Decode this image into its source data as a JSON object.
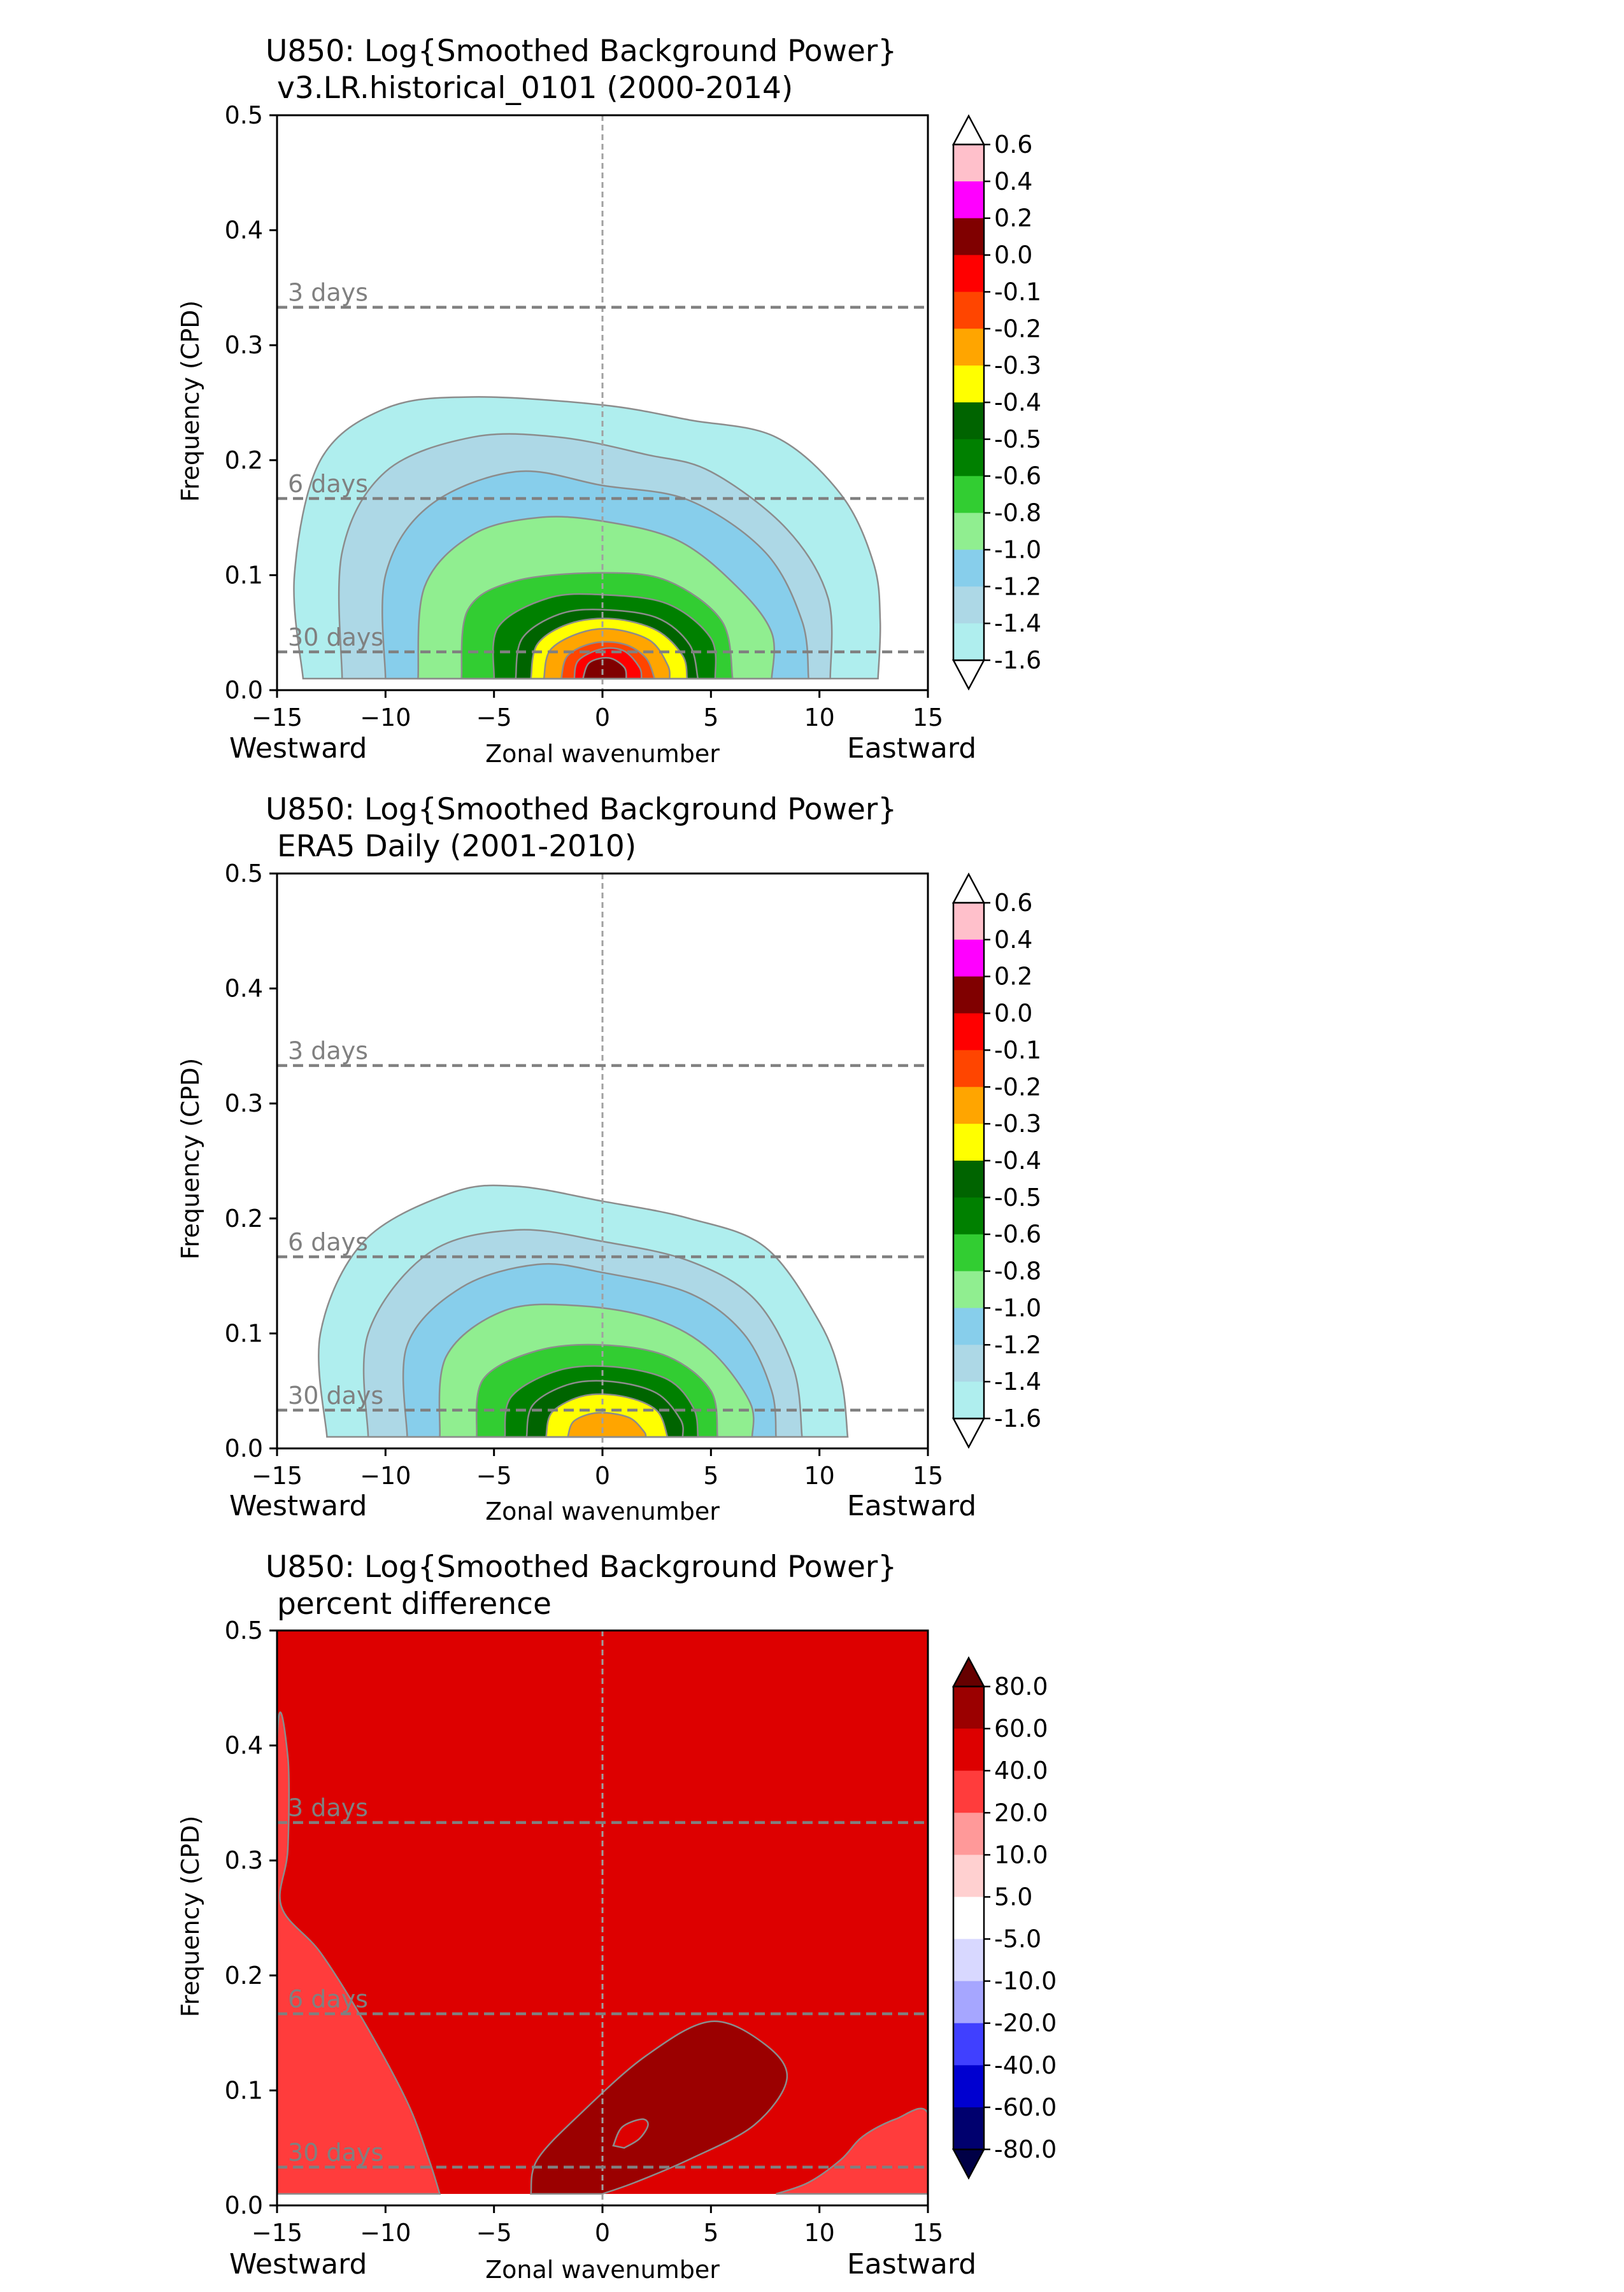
{
  "chart_data": [
    {
      "type": "contour",
      "title_line1": "U850: Log{Smoothed Background Power}",
      "title_line2": "v3.LR.historical_0101 (2000-2014)",
      "xlabel": "Zonal wavenumber",
      "ylabel": "Frequency (CPD)",
      "xlim": [
        -15,
        15
      ],
      "ylim": [
        0,
        0.5
      ],
      "x_ticks": [
        -15,
        -10,
        -5,
        0,
        5,
        10,
        15
      ],
      "y_ticks": [
        0.0,
        0.1,
        0.2,
        0.3,
        0.4,
        0.5
      ],
      "direction_left": "Westward",
      "direction_right": "Eastward",
      "period_lines": [
        {
          "label": "3 days",
          "freq": 0.333
        },
        {
          "label": "6 days",
          "freq": 0.1667
        },
        {
          "label": "30 days",
          "freq": 0.0333
        }
      ],
      "colorbar_labels": [
        "0.6",
        "0.4",
        "0.2",
        "0.0",
        "-0.1",
        "-0.2",
        "-0.3",
        "-0.4",
        "-0.5",
        "-0.6",
        "-0.8",
        "-1.0",
        "-1.2",
        "-1.4",
        "-1.6"
      ],
      "colorbar_colors": [
        "#ffc0cb",
        "#ff00ff",
        "#800000",
        "#ff0000",
        "#ff4500",
        "#ffa500",
        "#ffff00",
        "#006400",
        "#008000",
        "#32cd32",
        "#90ee90",
        "#87ceeb",
        "#add8e6",
        "#afeeee"
      ],
      "colorbar_extend_max_color": "#ffffff",
      "colorbar_extend_min_color": "#ffffff",
      "contours": [
        {
          "color": "#afeeee",
          "points": [
            [
              -13.8,
              0.01
            ],
            [
              -14.2,
              0.1
            ],
            [
              -13,
              0.2
            ],
            [
              -10,
              0.245
            ],
            [
              -6,
              0.255
            ],
            [
              0,
              0.248
            ],
            [
              4,
              0.235
            ],
            [
              8,
              0.22
            ],
            [
              11,
              0.17
            ],
            [
              12.5,
              0.11
            ],
            [
              12.8,
              0.06
            ],
            [
              12.7,
              0.01
            ]
          ]
        },
        {
          "color": "#add8e6",
          "points": [
            [
              -12,
              0.01
            ],
            [
              -12,
              0.12
            ],
            [
              -10,
              0.19
            ],
            [
              -6,
              0.22
            ],
            [
              -2,
              0.22
            ],
            [
              2,
              0.205
            ],
            [
              5,
              0.19
            ],
            [
              8.5,
              0.14
            ],
            [
              10.4,
              0.08
            ],
            [
              10.5,
              0.01
            ]
          ]
        },
        {
          "color": "#87ceeb",
          "points": [
            [
              -10,
              0.01
            ],
            [
              -10,
              0.1
            ],
            [
              -8,
              0.16
            ],
            [
              -4,
              0.19
            ],
            [
              0,
              0.178
            ],
            [
              4,
              0.165
            ],
            [
              7.5,
              0.12
            ],
            [
              9.2,
              0.06
            ],
            [
              9.5,
              0.01
            ]
          ]
        },
        {
          "color": "#90ee90",
          "points": [
            [
              -8.5,
              0.01
            ],
            [
              -8.2,
              0.09
            ],
            [
              -6,
              0.135
            ],
            [
              -3,
              0.15
            ],
            [
              0,
              0.147
            ],
            [
              3.5,
              0.13
            ],
            [
              6.2,
              0.09
            ],
            [
              7.8,
              0.05
            ],
            [
              7.8,
              0.01
            ]
          ]
        },
        {
          "color": "#32cd32",
          "points": [
            [
              -6.5,
              0.01
            ],
            [
              -6.2,
              0.07
            ],
            [
              -4,
              0.095
            ],
            [
              0,
              0.102
            ],
            [
              3,
              0.095
            ],
            [
              5.5,
              0.06
            ],
            [
              6,
              0.01
            ]
          ]
        },
        {
          "color": "#008000",
          "points": [
            [
              -5,
              0.01
            ],
            [
              -4.8,
              0.055
            ],
            [
              -2.5,
              0.08
            ],
            [
              0,
              0.083
            ],
            [
              3,
              0.075
            ],
            [
              5,
              0.045
            ],
            [
              5.2,
              0.01
            ]
          ]
        },
        {
          "color": "#006400",
          "points": [
            [
              -4,
              0.01
            ],
            [
              -3.7,
              0.045
            ],
            [
              -2,
              0.066
            ],
            [
              0,
              0.07
            ],
            [
              2.5,
              0.063
            ],
            [
              4,
              0.04
            ],
            [
              4.4,
              0.01
            ]
          ]
        },
        {
          "color": "#ffff00",
          "points": [
            [
              -3.3,
              0.01
            ],
            [
              -3,
              0.04
            ],
            [
              -1.5,
              0.058
            ],
            [
              0.5,
              0.062
            ],
            [
              2.5,
              0.052
            ],
            [
              3.7,
              0.03
            ],
            [
              3.9,
              0.01
            ]
          ]
        },
        {
          "color": "#ffa500",
          "points": [
            [
              -2.7,
              0.01
            ],
            [
              -2.4,
              0.035
            ],
            [
              -1,
              0.05
            ],
            [
              0.5,
              0.053
            ],
            [
              2.2,
              0.043
            ],
            [
              3,
              0.022
            ],
            [
              3.1,
              0.01
            ]
          ]
        },
        {
          "color": "#ff4500",
          "points": [
            [
              -1.9,
              0.01
            ],
            [
              -1.6,
              0.03
            ],
            [
              -0.4,
              0.041
            ],
            [
              1,
              0.04
            ],
            [
              2,
              0.028
            ],
            [
              2.4,
              0.01
            ]
          ]
        },
        {
          "color": "#ff0000",
          "points": [
            [
              -1.3,
              0.01
            ],
            [
              -1.1,
              0.026
            ],
            [
              0,
              0.036
            ],
            [
              1,
              0.034
            ],
            [
              1.7,
              0.02
            ],
            [
              1.8,
              0.01
            ]
          ]
        },
        {
          "color": "#800000",
          "points": [
            [
              -0.9,
              0.01
            ],
            [
              -0.6,
              0.024
            ],
            [
              0.3,
              0.028
            ],
            [
              1,
              0.02
            ],
            [
              1.1,
              0.01
            ]
          ]
        }
      ]
    },
    {
      "type": "contour",
      "title_line1": "U850: Log{Smoothed Background Power}",
      "title_line2": "ERA5 Daily (2001-2010)",
      "xlabel": "Zonal wavenumber",
      "ylabel": "Frequency (CPD)",
      "xlim": [
        -15,
        15
      ],
      "ylim": [
        0,
        0.5
      ],
      "x_ticks": [
        -15,
        -10,
        -5,
        0,
        5,
        10,
        15
      ],
      "y_ticks": [
        0.0,
        0.1,
        0.2,
        0.3,
        0.4,
        0.5
      ],
      "direction_left": "Westward",
      "direction_right": "Eastward",
      "period_lines": [
        {
          "label": "3 days",
          "freq": 0.333
        },
        {
          "label": "6 days",
          "freq": 0.1667
        },
        {
          "label": "30 days",
          "freq": 0.0333
        }
      ],
      "colorbar_labels": [
        "0.6",
        "0.4",
        "0.2",
        "0.0",
        "-0.1",
        "-0.2",
        "-0.3",
        "-0.4",
        "-0.5",
        "-0.6",
        "-0.8",
        "-1.0",
        "-1.2",
        "-1.4",
        "-1.6"
      ],
      "colorbar_colors": [
        "#ffc0cb",
        "#ff00ff",
        "#800000",
        "#ff0000",
        "#ff4500",
        "#ffa500",
        "#ffff00",
        "#006400",
        "#008000",
        "#32cd32",
        "#90ee90",
        "#87ceeb",
        "#add8e6",
        "#afeeee"
      ],
      "colorbar_extend_max_color": "#ffffff",
      "colorbar_extend_min_color": "#ffffff",
      "contours": [
        {
          "color": "#afeeee",
          "points": [
            [
              -12.7,
              0.01
            ],
            [
              -13,
              0.1
            ],
            [
              -11,
              0.18
            ],
            [
              -7,
              0.222
            ],
            [
              -4,
              0.228
            ],
            [
              0,
              0.215
            ],
            [
              4,
              0.2
            ],
            [
              7.5,
              0.175
            ],
            [
              10,
              0.11
            ],
            [
              11,
              0.06
            ],
            [
              11.3,
              0.01
            ]
          ]
        },
        {
          "color": "#add8e6",
          "points": [
            [
              -10.8,
              0.01
            ],
            [
              -10.8,
              0.1
            ],
            [
              -8,
              0.17
            ],
            [
              -4,
              0.19
            ],
            [
              0,
              0.18
            ],
            [
              4,
              0.163
            ],
            [
              7,
              0.13
            ],
            [
              8.8,
              0.07
            ],
            [
              9.2,
              0.01
            ]
          ]
        },
        {
          "color": "#87ceeb",
          "points": [
            [
              -9,
              0.01
            ],
            [
              -9,
              0.09
            ],
            [
              -6.5,
              0.14
            ],
            [
              -3,
              0.16
            ],
            [
              0,
              0.153
            ],
            [
              4,
              0.135
            ],
            [
              6.5,
              0.1
            ],
            [
              7.8,
              0.05
            ],
            [
              8,
              0.01
            ]
          ]
        },
        {
          "color": "#90ee90",
          "points": [
            [
              -7.5,
              0.01
            ],
            [
              -7.2,
              0.08
            ],
            [
              -4.5,
              0.12
            ],
            [
              -1,
              0.124
            ],
            [
              2.5,
              0.112
            ],
            [
              5,
              0.085
            ],
            [
              6.8,
              0.04
            ],
            [
              6.9,
              0.01
            ]
          ]
        },
        {
          "color": "#32cd32",
          "points": [
            [
              -5.8,
              0.01
            ],
            [
              -5.5,
              0.06
            ],
            [
              -3,
              0.085
            ],
            [
              0,
              0.09
            ],
            [
              3,
              0.08
            ],
            [
              5,
              0.05
            ],
            [
              5.3,
              0.01
            ]
          ]
        },
        {
          "color": "#008000",
          "points": [
            [
              -4.5,
              0.01
            ],
            [
              -4.2,
              0.045
            ],
            [
              -2,
              0.068
            ],
            [
              0.5,
              0.071
            ],
            [
              3,
              0.06
            ],
            [
              4.2,
              0.035
            ],
            [
              4.4,
              0.01
            ]
          ]
        },
        {
          "color": "#006400",
          "points": [
            [
              -3.5,
              0.01
            ],
            [
              -3.2,
              0.038
            ],
            [
              -1.5,
              0.056
            ],
            [
              0.5,
              0.058
            ],
            [
              2.5,
              0.048
            ],
            [
              3.6,
              0.025
            ],
            [
              3.7,
              0.01
            ]
          ]
        },
        {
          "color": "#ffff00",
          "points": [
            [
              -2.6,
              0.01
            ],
            [
              -2.3,
              0.032
            ],
            [
              -0.8,
              0.046
            ],
            [
              1,
              0.045
            ],
            [
              2.5,
              0.033
            ],
            [
              3,
              0.01
            ]
          ]
        },
        {
          "color": "#ffa500",
          "points": [
            [
              -1.6,
              0.01
            ],
            [
              -1.3,
              0.024
            ],
            [
              -0.2,
              0.031
            ],
            [
              1.2,
              0.027
            ],
            [
              1.9,
              0.015
            ],
            [
              2,
              0.01
            ]
          ]
        }
      ]
    },
    {
      "type": "contour",
      "title_line1": "U850: Log{Smoothed Background Power}",
      "title_line2": "percent difference",
      "xlabel": "Zonal wavenumber",
      "ylabel": "Frequency (CPD)",
      "xlim": [
        -15,
        15
      ],
      "ylim": [
        0,
        0.5
      ],
      "x_ticks": [
        -15,
        -10,
        -5,
        0,
        5,
        10,
        15
      ],
      "y_ticks": [
        0.0,
        0.1,
        0.2,
        0.3,
        0.4,
        0.5
      ],
      "direction_left": "Westward",
      "direction_right": "Eastward",
      "period_lines": [
        {
          "label": "3 days",
          "freq": 0.333
        },
        {
          "label": "6 days",
          "freq": 0.1667
        },
        {
          "label": "30 days",
          "freq": 0.0333
        }
      ],
      "colorbar_labels": [
        "80.0",
        "60.0",
        "40.0",
        "20.0",
        "10.0",
        "5.0",
        "-5.0",
        "-10.0",
        "-20.0",
        "-40.0",
        "-60.0",
        "-80.0"
      ],
      "colorbar_colors": [
        "#9b0000",
        "#dd0000",
        "#ff3c3c",
        "#ff9999",
        "#ffd0d0",
        "#ffffff",
        "#d8d8ff",
        "#a6a6ff",
        "#4040ff",
        "#0000d0",
        "#00006e"
      ],
      "colorbar_extend_max_color": "#660000",
      "colorbar_extend_min_color": "#000046",
      "background_color": "#dd0000",
      "contours": [
        {
          "color": "#ff3c3c",
          "points": [
            [
              -15,
              0.01
            ],
            [
              -15,
              0.4
            ],
            [
              -14.5,
              0.39
            ],
            [
              -14.5,
              0.31
            ],
            [
              -14.8,
              0.26
            ],
            [
              -13,
              0.22
            ],
            [
              -11,
              0.16
            ],
            [
              -9,
              0.09
            ],
            [
              -8,
              0.04
            ],
            [
              -7.5,
              0.01
            ]
          ]
        },
        {
          "color": "#ff3c3c",
          "points": [
            [
              15,
              0.01
            ],
            [
              15,
              0.08
            ],
            [
              13.5,
              0.075
            ],
            [
              12,
              0.06
            ],
            [
              11,
              0.04
            ],
            [
              9.5,
              0.02
            ],
            [
              8,
              0.01
            ]
          ]
        },
        {
          "color": "#9b0000",
          "points": [
            [
              -3.3,
              0.01
            ],
            [
              -3,
              0.04
            ],
            [
              -1,
              0.08
            ],
            [
              2,
              0.13
            ],
            [
              5,
              0.16
            ],
            [
              7.5,
              0.14
            ],
            [
              8.5,
              0.11
            ],
            [
              7,
              0.07
            ],
            [
              4,
              0.04
            ],
            [
              1.5,
              0.02
            ],
            [
              0,
              0.01
            ]
          ]
        },
        {
          "color": "#dd0000",
          "points": [
            [
              0.5,
              0.052
            ],
            [
              0.9,
              0.068
            ],
            [
              1.8,
              0.075
            ],
            [
              2.1,
              0.07
            ],
            [
              1.7,
              0.058
            ],
            [
              1,
              0.05
            ]
          ]
        }
      ]
    }
  ]
}
